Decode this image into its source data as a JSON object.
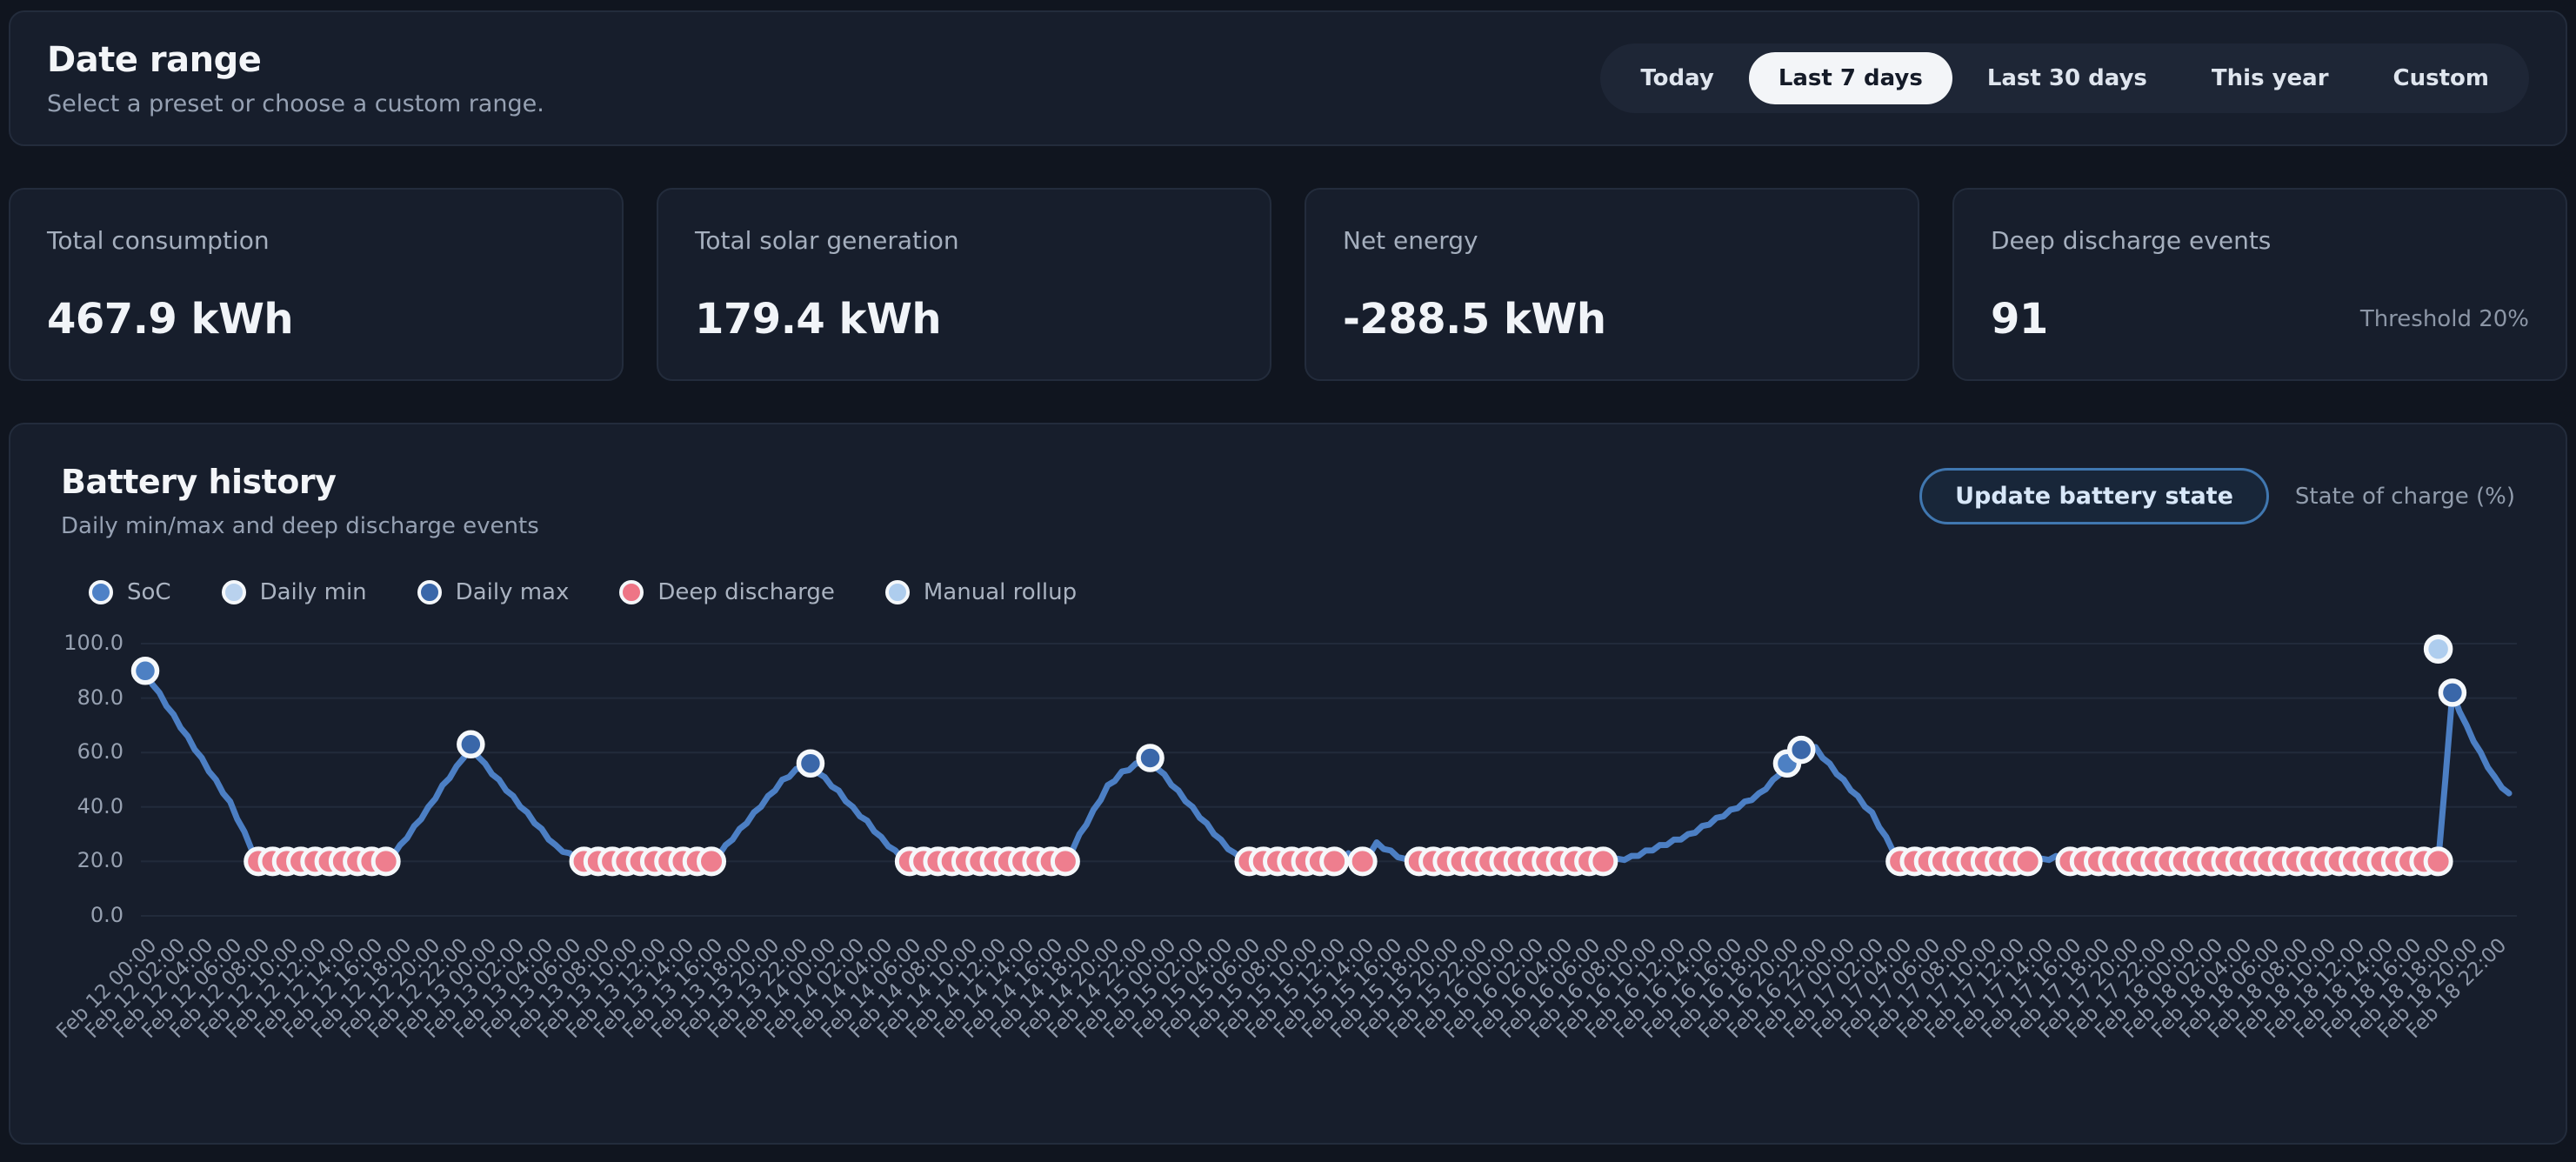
{
  "date_range": {
    "title": "Date range",
    "subtitle": "Select a preset or choose a custom range.",
    "presets": [
      "Today",
      "Last 7 days",
      "Last 30 days",
      "This year",
      "Custom"
    ],
    "active_preset": "Last 7 days"
  },
  "stats": [
    {
      "label": "Total consumption",
      "value": "467.9 kWh"
    },
    {
      "label": "Total solar generation",
      "value": "179.4 kWh"
    },
    {
      "label": "Net energy",
      "value": "-288.5 kWh"
    },
    {
      "label": "Deep discharge events",
      "value": "91",
      "note": "Threshold 20%"
    }
  ],
  "battery": {
    "title": "Battery history",
    "subtitle": "Daily min/max and deep discharge events",
    "update_button": "Update battery state",
    "axis_note": "State of charge (%)",
    "legend": [
      {
        "label": "SoC",
        "color": "#4e81c6"
      },
      {
        "label": "Daily min",
        "color": "#b9d2ee"
      },
      {
        "label": "Daily max",
        "color": "#3a67a9"
      },
      {
        "label": "Deep discharge",
        "color": "#ee7586"
      },
      {
        "label": "Manual rollup",
        "color": "#aecdee"
      }
    ]
  },
  "chart_data": {
    "type": "line",
    "title": "Battery history",
    "ylabel": "State of charge (%)",
    "ylim": [
      0,
      100
    ],
    "yticks": [
      100,
      80,
      60,
      40,
      20,
      0
    ],
    "ytick_labels": [
      "100.0",
      "80.0",
      "60.0",
      "40.0",
      "20.0",
      "0.0"
    ],
    "deep_discharge_threshold": 20,
    "grid": "horizontal",
    "x_labels": [
      "Feb 12 00:00",
      "Feb 12 02:00",
      "Feb 12 04:00",
      "Feb 12 06:00",
      "Feb 12 08:00",
      "Feb 12 10:00",
      "Feb 12 12:00",
      "Feb 12 14:00",
      "Feb 12 16:00",
      "Feb 12 18:00",
      "Feb 12 20:00",
      "Feb 12 22:00",
      "Feb 13 00:00",
      "Feb 13 02:00",
      "Feb 13 04:00",
      "Feb 13 06:00",
      "Feb 13 08:00",
      "Feb 13 10:00",
      "Feb 13 12:00",
      "Feb 13 14:00",
      "Feb 13 16:00",
      "Feb 13 18:00",
      "Feb 13 20:00",
      "Feb 13 22:00",
      "Feb 14 00:00",
      "Feb 14 02:00",
      "Feb 14 04:00",
      "Feb 14 06:00",
      "Feb 14 08:00",
      "Feb 14 10:00",
      "Feb 14 12:00",
      "Feb 14 14:00",
      "Feb 14 16:00",
      "Feb 14 18:00",
      "Feb 14 20:00",
      "Feb 14 22:00",
      "Feb 15 00:00",
      "Feb 15 02:00",
      "Feb 15 04:00",
      "Feb 15 06:00",
      "Feb 15 08:00",
      "Feb 15 10:00",
      "Feb 15 12:00",
      "Feb 15 14:00",
      "Feb 15 16:00",
      "Feb 15 18:00",
      "Feb 15 20:00",
      "Feb 15 22:00",
      "Feb 16 00:00",
      "Feb 16 02:00",
      "Feb 16 04:00",
      "Feb 16 06:00",
      "Feb 16 08:00",
      "Feb 16 10:00",
      "Feb 16 12:00",
      "Feb 16 14:00",
      "Feb 16 16:00",
      "Feb 16 18:00",
      "Feb 16 20:00",
      "Feb 16 22:00",
      "Feb 17 00:00",
      "Feb 17 02:00",
      "Feb 17 04:00",
      "Feb 17 06:00",
      "Feb 17 08:00",
      "Feb 17 10:00",
      "Feb 17 12:00",
      "Feb 17 14:00",
      "Feb 17 16:00",
      "Feb 17 18:00",
      "Feb 17 20:00",
      "Feb 17 22:00",
      "Feb 18 00:00",
      "Feb 18 02:00",
      "Feb 18 04:00",
      "Feb 18 06:00",
      "Feb 18 08:00",
      "Feb 18 10:00",
      "Feb 18 12:00",
      "Feb 18 14:00",
      "Feb 18 16:00",
      "Feb 18 18:00",
      "Feb 18 20:00",
      "Feb 18 22:00"
    ],
    "values": [
      90,
      82,
      74,
      66,
      58,
      50,
      42,
      31,
      20,
      20,
      20,
      20,
      20,
      20,
      20,
      20,
      20,
      20,
      26,
      33,
      40,
      48,
      55,
      63,
      56,
      50,
      44,
      38,
      32,
      26,
      23,
      20,
      20,
      20,
      20,
      20,
      20,
      20,
      20,
      20,
      20,
      26,
      32,
      38,
      44,
      50,
      54,
      56,
      51,
      46,
      40,
      35,
      29,
      24,
      20,
      20,
      20,
      20,
      20,
      20,
      20,
      20,
      20,
      20,
      20,
      20,
      30,
      39,
      48,
      53,
      56,
      58,
      52,
      46,
      40,
      34,
      28,
      23,
      20,
      20,
      20,
      20,
      20,
      20,
      20,
      23,
      20,
      27,
      24,
      21,
      20,
      20,
      20,
      20,
      20,
      20,
      20,
      20,
      20,
      20,
      20,
      20,
      20,
      20,
      21,
      22,
      24,
      26,
      28,
      30,
      33,
      36,
      39,
      42,
      45,
      50,
      56,
      61,
      62,
      56,
      50,
      44,
      38,
      29,
      20,
      20,
      20,
      20,
      20,
      20,
      20,
      20,
      20,
      20,
      21,
      22,
      20,
      20,
      20,
      20,
      20,
      20,
      20,
      20,
      20,
      20,
      20,
      20,
      20,
      20,
      20,
      20,
      20,
      20,
      20,
      20,
      20,
      20,
      20,
      20,
      20,
      20,
      20,
      82,
      70,
      60,
      51,
      45
    ],
    "markers": [
      {
        "index": 0,
        "value": 90,
        "type": "soc"
      },
      {
        "index": 23,
        "value": 63,
        "type": "daily_max"
      },
      {
        "index": 47,
        "value": 56,
        "type": "daily_max"
      },
      {
        "index": 71,
        "value": 58,
        "type": "daily_max"
      },
      {
        "index": 116,
        "value": 56,
        "type": "soc"
      },
      {
        "index": 117,
        "value": 61,
        "type": "daily_max"
      },
      {
        "index": 163,
        "value": 82,
        "type": "daily_max"
      }
    ],
    "manual_rollup_marker": {
      "index": 162,
      "value": 98
    },
    "colors": {
      "line": "#4c7fc4",
      "deep_discharge": "#ee7e8e",
      "marker_ring": "#f5f8fb",
      "soc": "#4d80c3",
      "daily_max": "#3a67a9",
      "manual_rollup": "#aecdee",
      "grid": "#222b3b"
    }
  }
}
